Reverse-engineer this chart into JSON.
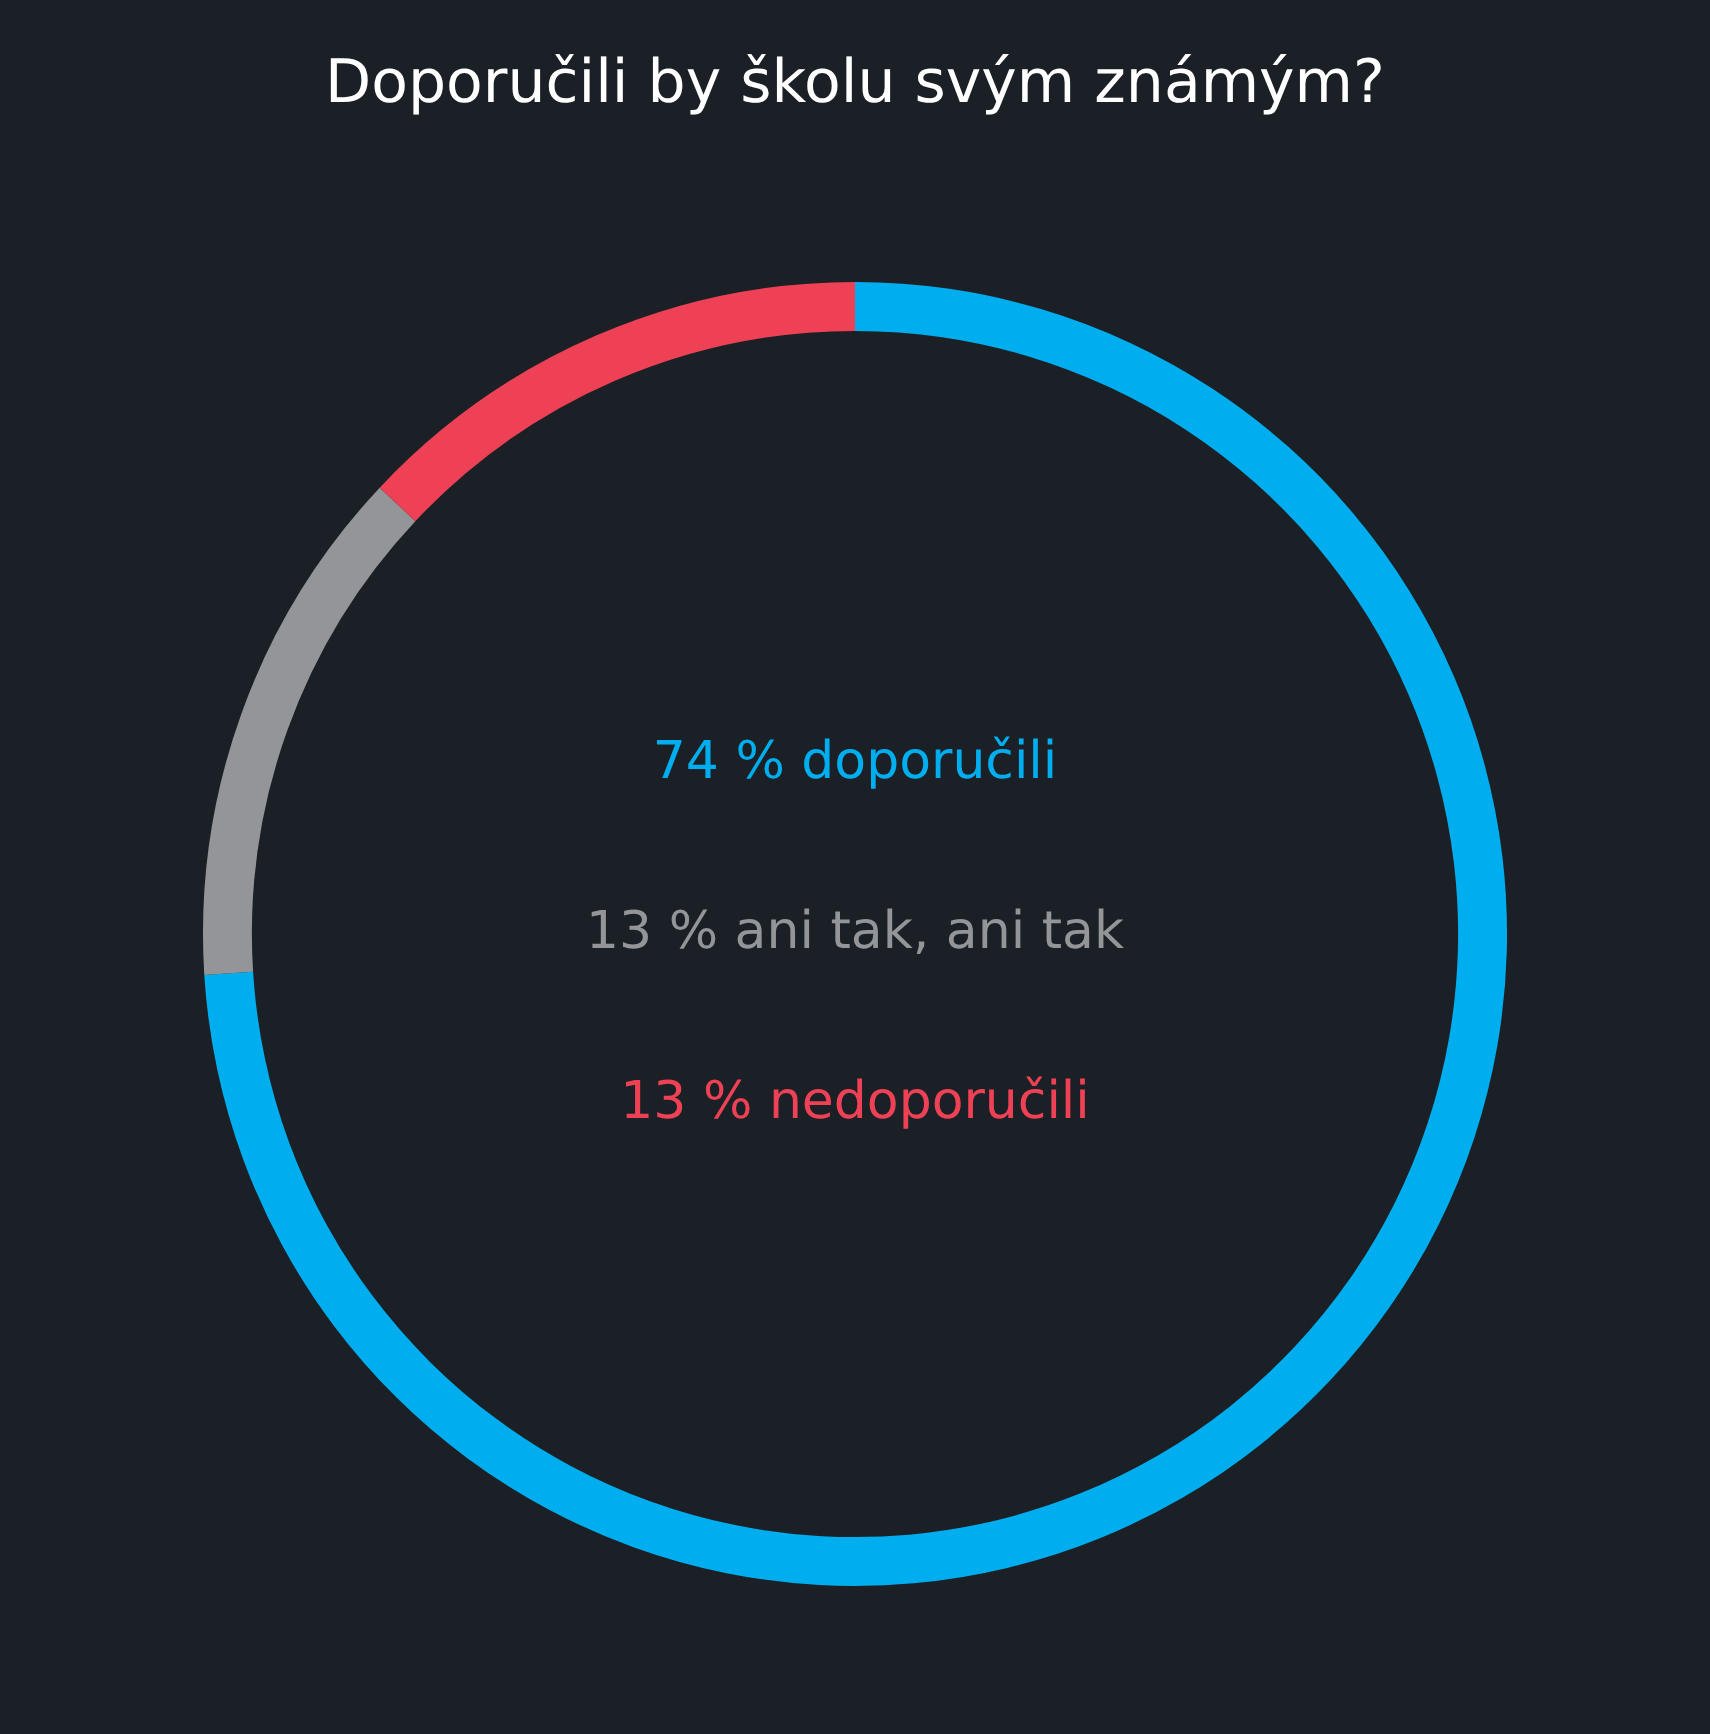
{
  "chart_data": {
    "type": "donut",
    "title": "Doporučili by školu svým známým?",
    "categories": [
      null,
      null,
      null
    ],
    "values": [
      74,
      13,
      13
    ],
    "colors": [
      "#00aeef",
      "#939598",
      "#ef4156"
    ],
    "annotations": [
      "74 % doporučili",
      "13 % ani tak, ani tak",
      "13 % nedoporučili"
    ],
    "legend": false
  }
}
